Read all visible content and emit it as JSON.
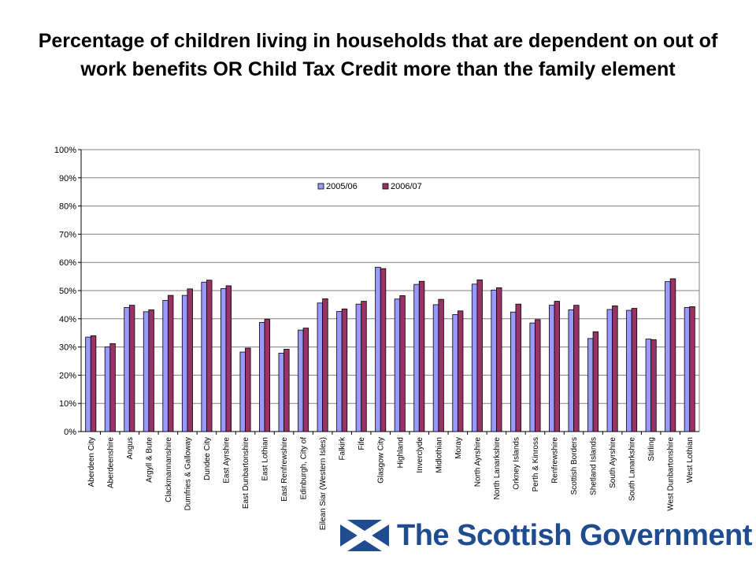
{
  "title": "Percentage of children living in households that are dependent on out of work benefits OR Child Tax Credit more than the family element",
  "logo_text": "The Scottish Government",
  "colors": {
    "series_2005": "#9999ff",
    "series_2006": "#993366",
    "logo_blue": "#1f4c8f"
  },
  "chart_data": {
    "type": "bar",
    "categories": [
      "Aberdeen City",
      "Aberdeenshire",
      "Angus",
      "Argyll & Bute",
      "Clackmannanshire",
      "Dumfries & Galloway",
      "Dundee City",
      "East Ayrshire",
      "East Dunbartonshire",
      "East Lothian",
      "East Renfrewshire",
      "Edinburgh, City of",
      "Eilean Siar (Western Isles)",
      "Falkirk",
      "Fife",
      "Glasgow City",
      "Highland",
      "Inverclyde",
      "Midlothian",
      "Moray",
      "North Ayrshire",
      "North Lanarkshire",
      "Orkney Islands",
      "Perth & Kinross",
      "Renfrewshire",
      "Scottish Borders",
      "Shetland Islands",
      "South Ayrshire",
      "South Lanarkshire",
      "Stirling",
      "West Dunbartonshire",
      "West Lothian"
    ],
    "series": [
      {
        "name": "2005/06",
        "values": [
          33.5,
          30,
          44,
          42.5,
          46.5,
          48.3,
          53,
          50.7,
          28.2,
          38.7,
          27.8,
          36,
          45.6,
          42.6,
          45.2,
          58.3,
          47,
          52.2,
          45,
          41.5,
          52.3,
          50.2,
          42.4,
          38.5,
          44.8,
          43.2,
          33,
          43.3,
          43,
          32.8,
          53.2,
          44
        ]
      },
      {
        "name": "2006/07",
        "values": [
          34,
          31.2,
          44.8,
          43.2,
          48.3,
          50.6,
          53.7,
          51.7,
          29.6,
          39.8,
          29.2,
          36.7,
          47.1,
          43.5,
          46.2,
          57.8,
          48.2,
          53.3,
          46.9,
          42.8,
          53.8,
          51,
          45.2,
          39.7,
          46.2,
          44.8,
          35.4,
          44.6,
          43.7,
          32.6,
          54.2,
          44.3
        ]
      }
    ],
    "y_ticks": [
      "0%",
      "10%",
      "20%",
      "30%",
      "40%",
      "50%",
      "60%",
      "70%",
      "80%",
      "90%",
      "100%"
    ],
    "ylim": [
      0,
      100
    ],
    "grid": true,
    "legend_position": "top-center"
  }
}
